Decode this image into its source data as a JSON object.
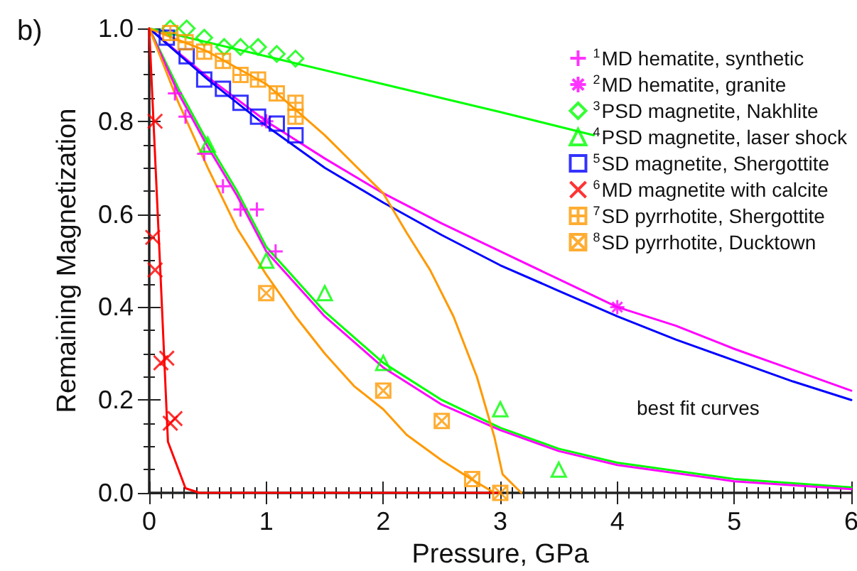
{
  "chart_data": {
    "type": "scatter",
    "xlabel": "Pressure, GPa",
    "ylabel": "Remaining Magnetization",
    "annotations": [
      "b)",
      "best fit curves"
    ],
    "xlim": [
      0,
      6
    ],
    "xticks": [
      0,
      1,
      2,
      3,
      4,
      5,
      6
    ],
    "ylim": [
      0,
      1
    ],
    "yticks": [
      {
        "value": 0,
        "label": "0.0"
      },
      {
        "value": 0.2,
        "label": "0.2"
      },
      {
        "value": 0.4,
        "label": "0.4"
      },
      {
        "value": 0.6,
        "label": "0.6"
      },
      {
        "value": 0.8,
        "label": "0.8"
      },
      {
        "value": 1,
        "label": "1.0"
      }
    ],
    "grid": false,
    "legend": "top right",
    "line_style": "solid",
    "series": [
      {
        "type": "line",
        "color": "#ff00ff",
        "x": [
          0,
          0.5,
          1,
          1.5,
          2,
          2.5,
          3,
          3.5,
          4,
          4.5,
          5,
          5.5,
          6
        ],
        "values": [
          1,
          0.895,
          0.8,
          0.72,
          0.645,
          0.58,
          0.52,
          0.46,
          0.4,
          0.36,
          0.31,
          0.265,
          0.22
        ]
      },
      {
        "type": "line",
        "color": "#0000ff",
        "x": [
          0,
          0.5,
          1,
          1.5,
          2,
          2.5,
          3,
          3.5,
          4,
          4.5,
          5,
          5.5,
          6
        ],
        "values": [
          1,
          0.89,
          0.79,
          0.7,
          0.625,
          0.555,
          0.49,
          0.435,
          0.38,
          0.33,
          0.285,
          0.24,
          0.2
        ]
      },
      {
        "type": "line",
        "color": "#00ff00",
        "x": [
          0,
          1,
          2,
          3,
          3.8
        ],
        "values": [
          1,
          0.94,
          0.88,
          0.82,
          0.77
        ]
      },
      {
        "type": "line",
        "color": "#00ff00",
        "x": [
          0,
          0.25,
          0.5,
          0.75,
          1,
          1.5,
          2,
          2.5,
          3,
          3.5,
          4,
          5,
          6
        ],
        "values": [
          1,
          0.87,
          0.755,
          0.65,
          0.53,
          0.39,
          0.28,
          0.2,
          0.14,
          0.095,
          0.065,
          0.03,
          0.012
        ]
      },
      {
        "type": "line",
        "color": "#ff00ff",
        "x": [
          0,
          0.25,
          0.5,
          0.75,
          1,
          1.5,
          2,
          2.5,
          3,
          3.5,
          4,
          5,
          6
        ],
        "values": [
          1,
          0.86,
          0.745,
          0.64,
          0.52,
          0.38,
          0.27,
          0.19,
          0.135,
          0.09,
          0.06,
          0.025,
          0.008
        ]
      },
      {
        "type": "line",
        "color": "#ff9900",
        "x": [
          0,
          0.5,
          1,
          1.5,
          2,
          2.2,
          2.4,
          2.6,
          2.8,
          2.95,
          3.02,
          3.18
        ],
        "values": [
          1,
          0.95,
          0.88,
          0.77,
          0.645,
          0.56,
          0.48,
          0.38,
          0.25,
          0.12,
          0.04,
          0
        ]
      },
      {
        "type": "line",
        "color": "#ff9900",
        "x": [
          0,
          0.25,
          0.5,
          0.75,
          1,
          1.25,
          1.5,
          1.75,
          2,
          2.2,
          2.5,
          2.75,
          2.95
        ],
        "values": [
          1,
          0.84,
          0.7,
          0.57,
          0.47,
          0.38,
          0.3,
          0.23,
          0.18,
          0.125,
          0.07,
          0.03,
          0
        ]
      },
      {
        "type": "line",
        "color": "#ff0000",
        "x": [
          0,
          0.1,
          0.16,
          0.31,
          0.43,
          3
        ],
        "values": [
          1,
          0.45,
          0.11,
          0.01,
          0,
          0
        ]
      },
      {
        "name": "$^{1}$MD hematite, synthetic",
        "marker": "cross",
        "color": "#ff00ff",
        "x": [
          0.22,
          0.31,
          0.47,
          0.63,
          0.78,
          0.92,
          1.08
        ],
        "values": [
          0.86,
          0.81,
          0.73,
          0.66,
          0.61,
          0.61,
          0.52
        ]
      },
      {
        "name": "$^{2}$MD hematite, granite",
        "marker": "cross",
        "color": "#ff00ff",
        "x": [
          1,
          4
        ],
        "values": [
          0.8,
          0.4
        ]
      },
      {
        "name": "$^{3}$PSD magnetite, Nakhlite",
        "marker": "diamond",
        "color": "#00ff00",
        "x": [
          0.18,
          0.32,
          0.47,
          0.64,
          0.78,
          0.93,
          1.09,
          1.25
        ],
        "values": [
          1,
          1,
          0.98,
          0.96,
          0.96,
          0.96,
          0.945,
          0.935
        ]
      },
      {
        "name": "$^{4}$PSD magnetite, laser shock",
        "marker": "triangle",
        "color": "#00ff00",
        "x": [
          0.5,
          1,
          1.5,
          2,
          3,
          3.5
        ],
        "values": [
          0.75,
          0.5,
          0.43,
          0.28,
          0.18,
          0.05
        ]
      },
      {
        "name": "$^{5}$SD magnetite, Shergottite",
        "marker": "square",
        "color": "#0000ff",
        "x": [
          0.15,
          0.32,
          0.47,
          0.63,
          0.78,
          0.93,
          1.09,
          1.25
        ],
        "values": [
          0.98,
          0.94,
          0.89,
          0.87,
          0.84,
          0.81,
          0.795,
          0.77
        ]
      },
      {
        "name": "$^{6}$MD magnetite with calcite",
        "marker": "cross",
        "color": "#ff0000",
        "x": [
          0.05,
          0.03,
          0.05,
          0.1,
          0.15,
          0.18,
          0.22
        ],
        "values": [
          0.8,
          0.55,
          0.48,
          0.28,
          0.29,
          0.15,
          0.16
        ]
      },
      {
        "name": "$^{7}$SD pyrrhotite, Shergottite",
        "color": "#ff9900",
        "x": [
          0.18,
          0.31,
          0.47,
          0.63,
          0.78,
          0.93,
          1.09,
          1.25,
          1.25
        ],
        "values": [
          0.99,
          0.97,
          0.95,
          0.93,
          0.9,
          0.89,
          0.86,
          0.84,
          0.81
        ]
      },
      {
        "name": "$^{8}$SD pyrrhotite, Ducktown",
        "color": "#ff9900",
        "x": [
          1,
          2,
          2.5,
          2.76,
          3
        ],
        "values": [
          0.43,
          0.22,
          0.155,
          0.03,
          0
        ]
      }
    ]
  }
}
